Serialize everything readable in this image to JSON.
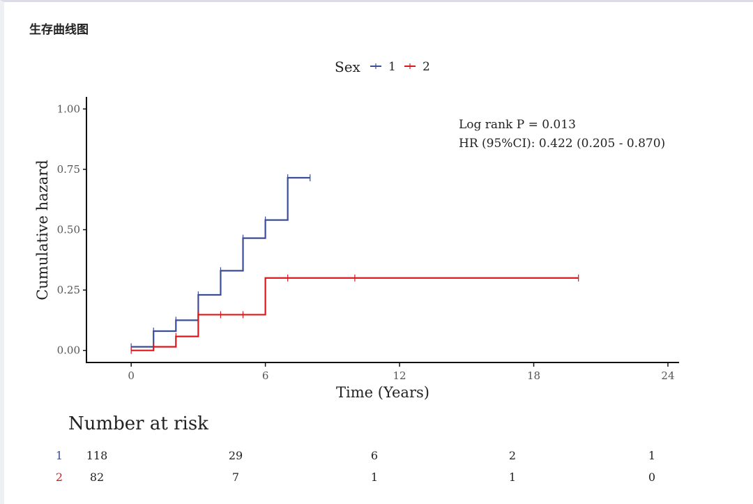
{
  "card": {
    "title": "生存曲线图"
  },
  "chart_data": {
    "type": "line",
    "style": "step",
    "xlabel": "Time (Years)",
    "ylabel": "Cumulative hazard",
    "xlim": [
      -2,
      24.5
    ],
    "ylim": [
      -0.05,
      1.05
    ],
    "x_ticks": [
      0,
      6,
      12,
      18,
      24
    ],
    "x_tick_labels": [
      "0",
      "6",
      "12",
      "18",
      "24"
    ],
    "y_ticks": [
      0,
      0.25,
      0.5,
      0.75,
      1.0
    ],
    "y_tick_labels": [
      "0.00",
      "0.25",
      "0.50",
      "0.75",
      "1.00"
    ],
    "legend": {
      "title": "Sex",
      "position": "top"
    },
    "series": [
      {
        "name": "1",
        "color": "#3b4d94",
        "steps": [
          [
            0,
            0.015
          ],
          [
            1,
            0.08
          ],
          [
            2,
            0.125
          ],
          [
            3,
            0.23
          ],
          [
            4,
            0.33
          ],
          [
            5,
            0.465
          ],
          [
            6,
            0.54
          ],
          [
            7,
            0.715
          ]
        ],
        "end_x": 8,
        "censor_x": [
          0,
          1,
          2,
          3,
          4,
          5,
          6,
          7,
          8
        ]
      },
      {
        "name": "2",
        "color": "#d7191c",
        "steps": [
          [
            0,
            0.0
          ],
          [
            1,
            0.015
          ],
          [
            2,
            0.058
          ],
          [
            3,
            0.148
          ],
          [
            6,
            0.3
          ]
        ],
        "end_x": 20,
        "censor_x": [
          0,
          1,
          2,
          3,
          4,
          5,
          7,
          10,
          20
        ]
      }
    ],
    "annotations": [
      "Log rank P = 0.013",
      "HR (95%CI): 0.422 (0.205 - 0.870)"
    ],
    "risk_table": {
      "title": "Number at risk",
      "times": [
        0,
        6,
        12,
        18,
        24
      ],
      "rows": [
        {
          "label": "1",
          "color": "#3b4d94",
          "values": [
            "118",
            "29",
            "6",
            "2",
            "1"
          ]
        },
        {
          "label": "2",
          "color": "#d7191c",
          "values": [
            "82",
            "7",
            "1",
            "1",
            "0"
          ]
        }
      ]
    }
  }
}
